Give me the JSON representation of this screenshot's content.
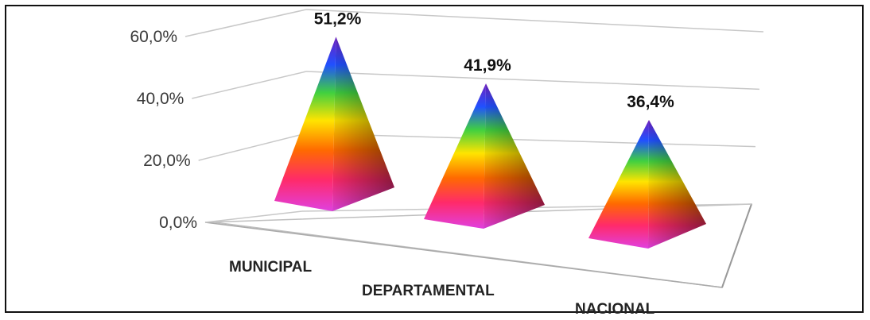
{
  "chart_data": {
    "type": "bar",
    "shape": "pyramid-3d",
    "categories": [
      "MUNICIPAL",
      "DEPARTAMENTAL",
      "NACIONAL"
    ],
    "values": [
      51.2,
      41.9,
      36.4
    ],
    "data_labels": [
      "51,2%",
      "41,9%",
      "36,4%"
    ],
    "yticks": [
      0,
      20,
      40,
      60
    ],
    "ytick_labels": [
      "0,0%",
      "20,0%",
      "40,0%",
      "60,0%"
    ],
    "ylim": [
      0,
      60
    ],
    "grid": true,
    "legend": "none",
    "gradient_colors": [
      "#e040e0",
      "#ff2a6a",
      "#ff6a00",
      "#ffe400",
      "#40d040",
      "#2050ff",
      "#7020c0"
    ]
  }
}
